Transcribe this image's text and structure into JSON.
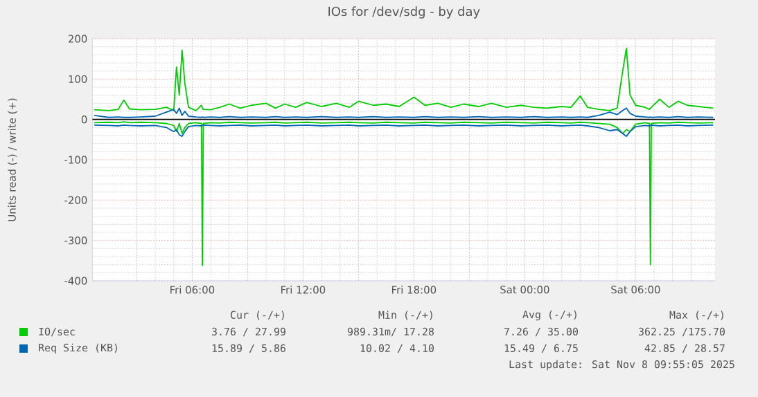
{
  "chart_data": {
    "type": "line",
    "title": "IOs for /dev/sdg - by day",
    "ylabel": "Units read (-) / write (+)",
    "x": [
      "2025-11-07T00:42",
      "2025-11-07T01:30",
      "2025-11-07T02:00",
      "2025-11-07T02:18",
      "2025-11-07T02:36",
      "2025-11-07T03:12",
      "2025-11-07T04:00",
      "2025-11-07T04:36",
      "2025-11-07T05:00",
      "2025-11-07T05:09",
      "2025-11-07T05:18",
      "2025-11-07T05:27",
      "2025-11-07T05:36",
      "2025-11-07T05:48",
      "2025-11-07T06:12",
      "2025-11-07T06:30",
      "2025-11-07T06:33",
      "2025-11-07T06:36",
      "2025-11-07T07:00",
      "2025-11-07T07:30",
      "2025-11-07T08:00",
      "2025-11-07T08:36",
      "2025-11-07T09:12",
      "2025-11-07T10:00",
      "2025-11-07T10:30",
      "2025-11-07T11:00",
      "2025-11-07T11:36",
      "2025-11-07T12:12",
      "2025-11-07T13:00",
      "2025-11-07T13:48",
      "2025-11-07T14:30",
      "2025-11-07T15:00",
      "2025-11-07T15:48",
      "2025-11-07T16:30",
      "2025-11-07T17:12",
      "2025-11-07T18:00",
      "2025-11-07T18:36",
      "2025-11-07T19:18",
      "2025-11-07T20:00",
      "2025-11-07T20:42",
      "2025-11-07T21:30",
      "2025-11-07T22:12",
      "2025-11-07T23:00",
      "2025-11-07T23:48",
      "2025-11-08T00:30",
      "2025-11-08T01:12",
      "2025-11-08T02:00",
      "2025-11-08T02:30",
      "2025-11-08T03:00",
      "2025-11-08T03:24",
      "2025-11-08T04:00",
      "2025-11-08T04:36",
      "2025-11-08T05:00",
      "2025-11-08T05:18",
      "2025-11-08T05:30",
      "2025-11-08T05:42",
      "2025-11-08T06:00",
      "2025-11-08T06:30",
      "2025-11-08T06:45",
      "2025-11-08T06:48",
      "2025-11-08T06:51",
      "2025-11-08T07:18",
      "2025-11-08T07:48",
      "2025-11-08T08:18",
      "2025-11-08T08:48",
      "2025-11-08T09:24",
      "2025-11-08T10:12"
    ],
    "series": [
      {
        "name": "IO/sec",
        "color": "#00cc00",
        "values": [
          24,
          22,
          25,
          48,
          26,
          24,
          25,
          30,
          22,
          130,
          60,
          172,
          90,
          30,
          22,
          35,
          28,
          25,
          24,
          30,
          38,
          28,
          35,
          40,
          28,
          38,
          30,
          42,
          32,
          40,
          30,
          45,
          35,
          38,
          32,
          55,
          35,
          40,
          30,
          38,
          32,
          40,
          30,
          35,
          30,
          28,
          32,
          30,
          58,
          30,
          25,
          22,
          28,
          120,
          176,
          60,
          35,
          30,
          25,
          28,
          30,
          50,
          30,
          45,
          35,
          32,
          28
        ]
      },
      {
        "color": "#00cc00",
        "values": [
          -8,
          -7,
          -8,
          -6,
          -8,
          -7,
          -8,
          -10,
          -15,
          -30,
          -10,
          -35,
          -20,
          -10,
          -8,
          -10,
          -362,
          -10,
          -8,
          -9,
          -7,
          -8,
          -9,
          -8,
          -7,
          -9,
          -8,
          -7,
          -9,
          -8,
          -7,
          -8,
          -9,
          -7,
          -8,
          -9,
          -7,
          -8,
          -9,
          -7,
          -8,
          -9,
          -7,
          -8,
          -9,
          -7,
          -8,
          -9,
          -7,
          -8,
          -10,
          -12,
          -20,
          -35,
          -25,
          -30,
          -12,
          -8,
          -10,
          -360,
          -10,
          -8,
          -9,
          -7,
          -8,
          -9,
          -8
        ]
      },
      {
        "name": "Req Size (KB)",
        "color": "#0066b3",
        "values": [
          10,
          5,
          6,
          5,
          5,
          6,
          8,
          18,
          25,
          15,
          28,
          10,
          20,
          8,
          6,
          5,
          6,
          5,
          6,
          5,
          7,
          5,
          6,
          5,
          7,
          5,
          6,
          5,
          7,
          5,
          6,
          5,
          7,
          5,
          6,
          5,
          7,
          5,
          6,
          5,
          7,
          5,
          6,
          5,
          7,
          5,
          6,
          5,
          6,
          5,
          10,
          18,
          12,
          22,
          28,
          15,
          8,
          6,
          5,
          6,
          5,
          6,
          5,
          7,
          5,
          6,
          5
        ]
      },
      {
        "color": "#0066b3",
        "values": [
          -14,
          -15,
          -16,
          -14,
          -15,
          -16,
          -15,
          -20,
          -30,
          -25,
          -38,
          -42,
          -30,
          -18,
          -15,
          -16,
          -15,
          -14,
          -15,
          -16,
          -15,
          -14,
          -16,
          -15,
          -14,
          -16,
          -15,
          -14,
          -16,
          -15,
          -14,
          -16,
          -15,
          -14,
          -16,
          -15,
          -14,
          -16,
          -15,
          -14,
          -16,
          -15,
          -14,
          -16,
          -15,
          -14,
          -16,
          -15,
          -14,
          -16,
          -20,
          -28,
          -25,
          -35,
          -42,
          -30,
          -18,
          -15,
          -16,
          -15,
          -14,
          -16,
          -15,
          -14,
          -16,
          -15,
          -14
        ]
      }
    ],
    "xlim": [
      "2025-11-07T00:36",
      "2025-11-08T10:18"
    ],
    "xticks": [
      {
        "value": "2025-11-07T03:00",
        "label": null
      },
      {
        "value": "2025-11-07T06:00",
        "label": "Fri 06:00"
      },
      {
        "value": "2025-11-07T09:00",
        "label": null
      },
      {
        "value": "2025-11-07T12:00",
        "label": "Fri 12:00"
      },
      {
        "value": "2025-11-07T15:00",
        "label": null
      },
      {
        "value": "2025-11-07T18:00",
        "label": "Fri 18:00"
      },
      {
        "value": "2025-11-07T21:00",
        "label": null
      },
      {
        "value": "2025-11-08T00:00",
        "label": "Sat 00:00"
      },
      {
        "value": "2025-11-08T03:00",
        "label": null
      },
      {
        "value": "2025-11-08T06:00",
        "label": "Sat 06:00"
      },
      {
        "value": "2025-11-08T09:00",
        "label": null
      }
    ],
    "ylim": [
      -400,
      200
    ],
    "yticks": [
      -400,
      -300,
      -200,
      -100,
      0,
      100,
      200
    ],
    "grid": true,
    "legend": "bottom",
    "ref_lines": [
      {
        "axis": "y",
        "value": 0,
        "color": "#000000"
      }
    ],
    "annotations": [
      "Cur (-/+)",
      "Min (-/+)",
      "Avg (-/+)",
      "Max (-/+)",
      "3.76 / 27.99",
      "989.31m/ 17.28",
      "7.26 / 35.00",
      "362.25 /175.70",
      "15.89 /  5.86",
      "10.02 /  4.10",
      "15.49 /  6.75",
      "42.85 / 28.57",
      "Last update: Sat Nov  8 09:55:05 2025"
    ]
  }
}
